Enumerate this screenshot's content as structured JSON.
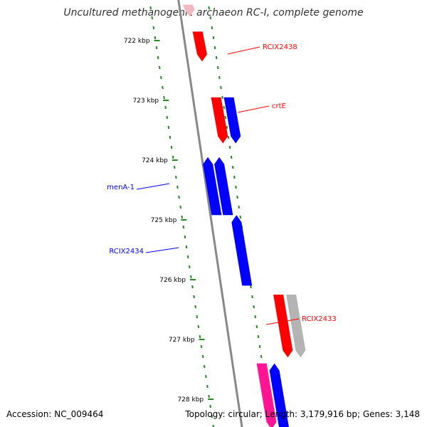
{
  "title": "Uncultured methanogenic archaeon RC-I, complete genome",
  "footer": {
    "accession": "Accession: NC_009464",
    "summary": "Topology: circular; Length: 3,179,916 bp; Genes: 3,148"
  },
  "colors": {
    "forward_gene": "#ff0000",
    "reverse_gene": "#0000ff",
    "other_gene": "#b4b4b4",
    "rna_gene": "#ff1493",
    "tick": "#228b22",
    "backbone": "#888888"
  },
  "ticks": [
    {
      "kbp": 722,
      "label": "722 kbp"
    },
    {
      "kbp": 723,
      "label": "723 kbp"
    },
    {
      "kbp": 724,
      "label": "724 kbp"
    },
    {
      "kbp": 725,
      "label": "725 kbp"
    },
    {
      "kbp": 726,
      "label": "726 kbp"
    },
    {
      "kbp": 727,
      "label": "727 kbp"
    },
    {
      "kbp": 728,
      "label": "728 kbp"
    }
  ],
  "genes": [
    {
      "name": "RCIX2438",
      "start_kbp": 721.85,
      "end_kbp": 722.35,
      "strand": "forward",
      "color_key": "forward_gene"
    },
    {
      "name": "crtE",
      "start_kbp": 722.95,
      "end_kbp": 723.72,
      "strand": "forward",
      "color_key": "forward_gene"
    },
    {
      "name": "",
      "start_kbp": 722.95,
      "end_kbp": 723.72,
      "strand": "forward",
      "color_key": "reverse_gene"
    },
    {
      "name": "menA-1",
      "start_kbp": 723.95,
      "end_kbp": 724.92,
      "strand": "reverse",
      "color_key": "reverse_gene"
    },
    {
      "name": "",
      "start_kbp": 723.95,
      "end_kbp": 724.92,
      "strand": "reverse",
      "color_key": "reverse_gene"
    },
    {
      "name": "RCIX2434",
      "start_kbp": 724.92,
      "end_kbp": 726.1,
      "strand": "reverse",
      "color_key": "reverse_gene"
    },
    {
      "name": "RCIX2433",
      "start_kbp": 726.25,
      "end_kbp": 727.3,
      "strand": "forward",
      "color_key": "forward_gene"
    },
    {
      "name": "",
      "start_kbp": 726.25,
      "end_kbp": 727.3,
      "strand": "forward",
      "color_key": "other_gene"
    }
  ],
  "labels": [
    {
      "text": "RCIX2438",
      "color_key": "forward_gene"
    },
    {
      "text": "crtE",
      "color_key": "forward_gene"
    },
    {
      "text": "menA-1",
      "color_key": "reverse_gene"
    },
    {
      "text": "RCIX2434",
      "color_key": "reverse_gene"
    },
    {
      "text": "RCIX2433",
      "color_key": "forward_gene"
    }
  ]
}
